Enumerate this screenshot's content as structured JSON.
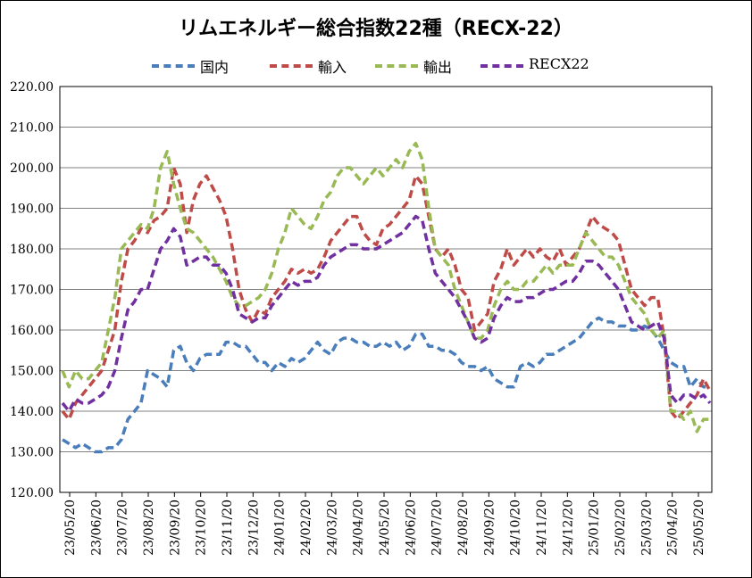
{
  "chart_data": {
    "type": "line",
    "title": "リムエネルギー総合指数22種（RECX-22）",
    "xlabel": "",
    "ylabel": "",
    "ylim": [
      120,
      220
    ],
    "yticks": [
      "120.00",
      "130.00",
      "140.00",
      "150.00",
      "160.00",
      "170.00",
      "180.00",
      "190.00",
      "200.00",
      "210.00",
      "220.00"
    ],
    "xticks": [
      "23/05/20",
      "23/06/20",
      "23/07/20",
      "23/08/20",
      "23/09/20",
      "23/10/20",
      "23/11/20",
      "23/12/20",
      "24/01/20",
      "24/02/20",
      "24/03/20",
      "24/04/20",
      "24/05/20",
      "24/06/20",
      "24/07/20",
      "24/08/20",
      "24/09/20",
      "24/10/20",
      "24/11/20",
      "24/12/20",
      "25/01/20",
      "25/02/20",
      "25/03/20",
      "25/04/20",
      "25/05/20"
    ],
    "grid": true,
    "legend_position": "top",
    "series": [
      {
        "name": "国内",
        "color": "#4a7ebb",
        "values": [
          133,
          132,
          131,
          132,
          131,
          130,
          130,
          131,
          131,
          133,
          138,
          140,
          142,
          150,
          149,
          148,
          146,
          155,
          156,
          152,
          150,
          153,
          154,
          154,
          154,
          157,
          157,
          156,
          156,
          154,
          152,
          152,
          150,
          152,
          151,
          153,
          152,
          153,
          155,
          157,
          155,
          154,
          157,
          158,
          158,
          157,
          157,
          156,
          156,
          157,
          156,
          157,
          155,
          156,
          159,
          159,
          156,
          156,
          155,
          155,
          154,
          152,
          151,
          151,
          150,
          151,
          148,
          147,
          146,
          146,
          151,
          152,
          151,
          152,
          154,
          154,
          155,
          156,
          157,
          158,
          160,
          162,
          163,
          162,
          162,
          161,
          161,
          160,
          160,
          161,
          160,
          158,
          155,
          152,
          151,
          151,
          146,
          148,
          146,
          146
        ]
      },
      {
        "name": "輸入",
        "color": "#be4b48",
        "values": [
          140,
          138,
          142,
          144,
          146,
          148,
          150,
          155,
          160,
          172,
          180,
          182,
          185,
          184,
          187,
          188,
          190,
          200,
          196,
          184,
          192,
          196,
          198,
          195,
          192,
          188,
          180,
          170,
          165,
          162,
          165,
          164,
          168,
          170,
          172,
          175,
          174,
          175,
          174,
          175,
          178,
          182,
          184,
          186,
          188,
          188,
          184,
          182,
          181,
          185,
          186,
          188,
          190,
          192,
          198,
          196,
          188,
          180,
          178,
          180,
          176,
          170,
          168,
          160,
          162,
          164,
          172,
          175,
          180,
          176,
          178,
          180,
          178,
          180,
          178,
          177,
          180,
          176,
          178,
          180,
          184,
          188,
          186,
          185,
          184,
          182,
          176,
          170,
          168,
          166,
          168,
          168,
          158,
          140,
          138,
          140,
          142,
          144,
          148,
          145
        ]
      },
      {
        "name": "輸出",
        "color": "#98b954",
        "values": [
          150,
          146,
          150,
          148,
          148,
          150,
          152,
          160,
          168,
          180,
          182,
          184,
          186,
          185,
          190,
          200,
          204,
          196,
          190,
          185,
          184,
          182,
          180,
          178,
          175,
          172,
          168,
          166,
          166,
          167,
          168,
          170,
          174,
          180,
          184,
          190,
          188,
          186,
          185,
          188,
          192,
          194,
          198,
          200,
          200,
          198,
          196,
          198,
          200,
          198,
          200,
          202,
          200,
          204,
          206,
          202,
          190,
          180,
          178,
          176,
          170,
          166,
          162,
          158,
          158,
          160,
          166,
          170,
          172,
          170,
          170,
          172,
          172,
          174,
          176,
          174,
          176,
          176,
          176,
          180,
          184,
          182,
          180,
          178,
          178,
          176,
          172,
          168,
          166,
          164,
          160,
          158,
          160,
          140,
          140,
          138,
          140,
          135,
          138,
          138
        ]
      },
      {
        "name": "RECX22",
        "color": "#7030a0",
        "values": [
          142,
          140,
          143,
          142,
          142,
          143,
          144,
          146,
          150,
          158,
          165,
          167,
          170,
          170,
          175,
          180,
          182,
          185,
          183,
          176,
          177,
          178,
          178,
          176,
          176,
          174,
          170,
          164,
          163,
          162,
          163,
          163,
          166,
          168,
          170,
          172,
          171,
          172,
          172,
          173,
          176,
          178,
          179,
          180,
          181,
          181,
          180,
          180,
          180,
          181,
          182,
          183,
          184,
          186,
          188,
          187,
          180,
          174,
          172,
          170,
          168,
          165,
          162,
          158,
          157,
          158,
          163,
          166,
          168,
          167,
          167,
          168,
          168,
          169,
          170,
          170,
          171,
          172,
          172,
          174,
          177,
          177,
          176,
          174,
          172,
          170,
          166,
          162,
          161,
          160,
          161,
          162,
          158,
          144,
          142,
          144,
          144,
          143,
          144,
          142
        ]
      }
    ]
  }
}
